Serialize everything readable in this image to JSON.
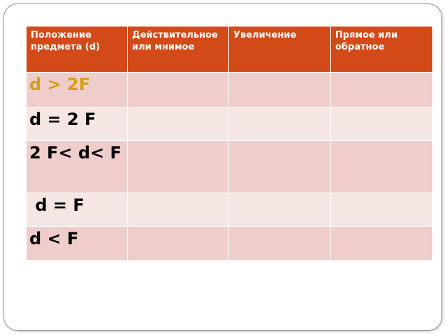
{
  "headers": [
    "Положение предмета (d)",
    "Действительное или мнимое",
    "Увеличение",
    "Прямое или обратное"
  ],
  "rows": [
    "d > 2F",
    "d = 2 F",
    "2 F< d< F",
    " d = F",
    "d < F"
  ],
  "colors": {
    "header": "#d24a17",
    "row_odd": "#eecdca",
    "row_even": "#f5e6e4",
    "highlight": "#d4a017"
  }
}
